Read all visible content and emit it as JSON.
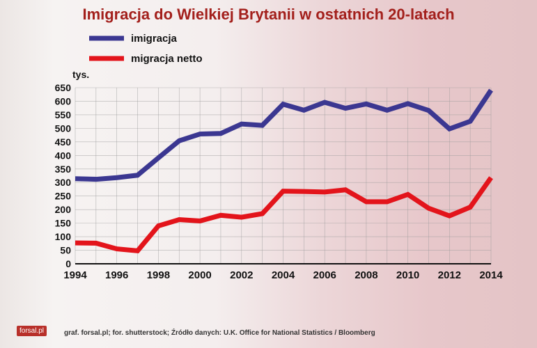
{
  "chart_data": {
    "type": "line",
    "title": "Imigracja do Wielkiej Brytanii w ostatnich 20-latach",
    "ylabel": "tys.",
    "xlabel": "",
    "x": [
      1994,
      1995,
      1996,
      1997,
      1998,
      1999,
      2000,
      2001,
      2002,
      2003,
      2004,
      2005,
      2006,
      2007,
      2008,
      2009,
      2010,
      2011,
      2012,
      2013,
      2014
    ],
    "xticks": [
      "1994",
      "1996",
      "1998",
      "2000",
      "2002",
      "2004",
      "2006",
      "2008",
      "2010",
      "2012",
      "2014"
    ],
    "yticks": [
      "0",
      "50",
      "100",
      "150",
      "200",
      "250",
      "300",
      "350",
      "400",
      "450",
      "500",
      "550",
      "600",
      "650"
    ],
    "ylim": [
      0,
      650
    ],
    "xlim": [
      1994,
      2014
    ],
    "grid": true,
    "legend_position": "top-left",
    "series": [
      {
        "name": "imigracja",
        "color": "#3b3791",
        "values": [
          314,
          312,
          318,
          327,
          391,
          454,
          479,
          481,
          516,
          511,
          589,
          567,
          596,
          574,
          590,
          567,
          591,
          566,
          498,
          526,
          641
        ]
      },
      {
        "name": "migracja netto",
        "color": "#e3141b",
        "values": [
          77,
          76,
          55,
          48,
          140,
          163,
          158,
          179,
          172,
          185,
          268,
          267,
          265,
          273,
          229,
          229,
          256,
          205,
          177,
          209,
          318
        ]
      }
    ]
  },
  "footer": {
    "logo": "forsal.pl",
    "source": "graf. forsal.pl; for. shutterstock;  Źródło danych:  U.K. Office for National Statistics / Bloomberg"
  }
}
